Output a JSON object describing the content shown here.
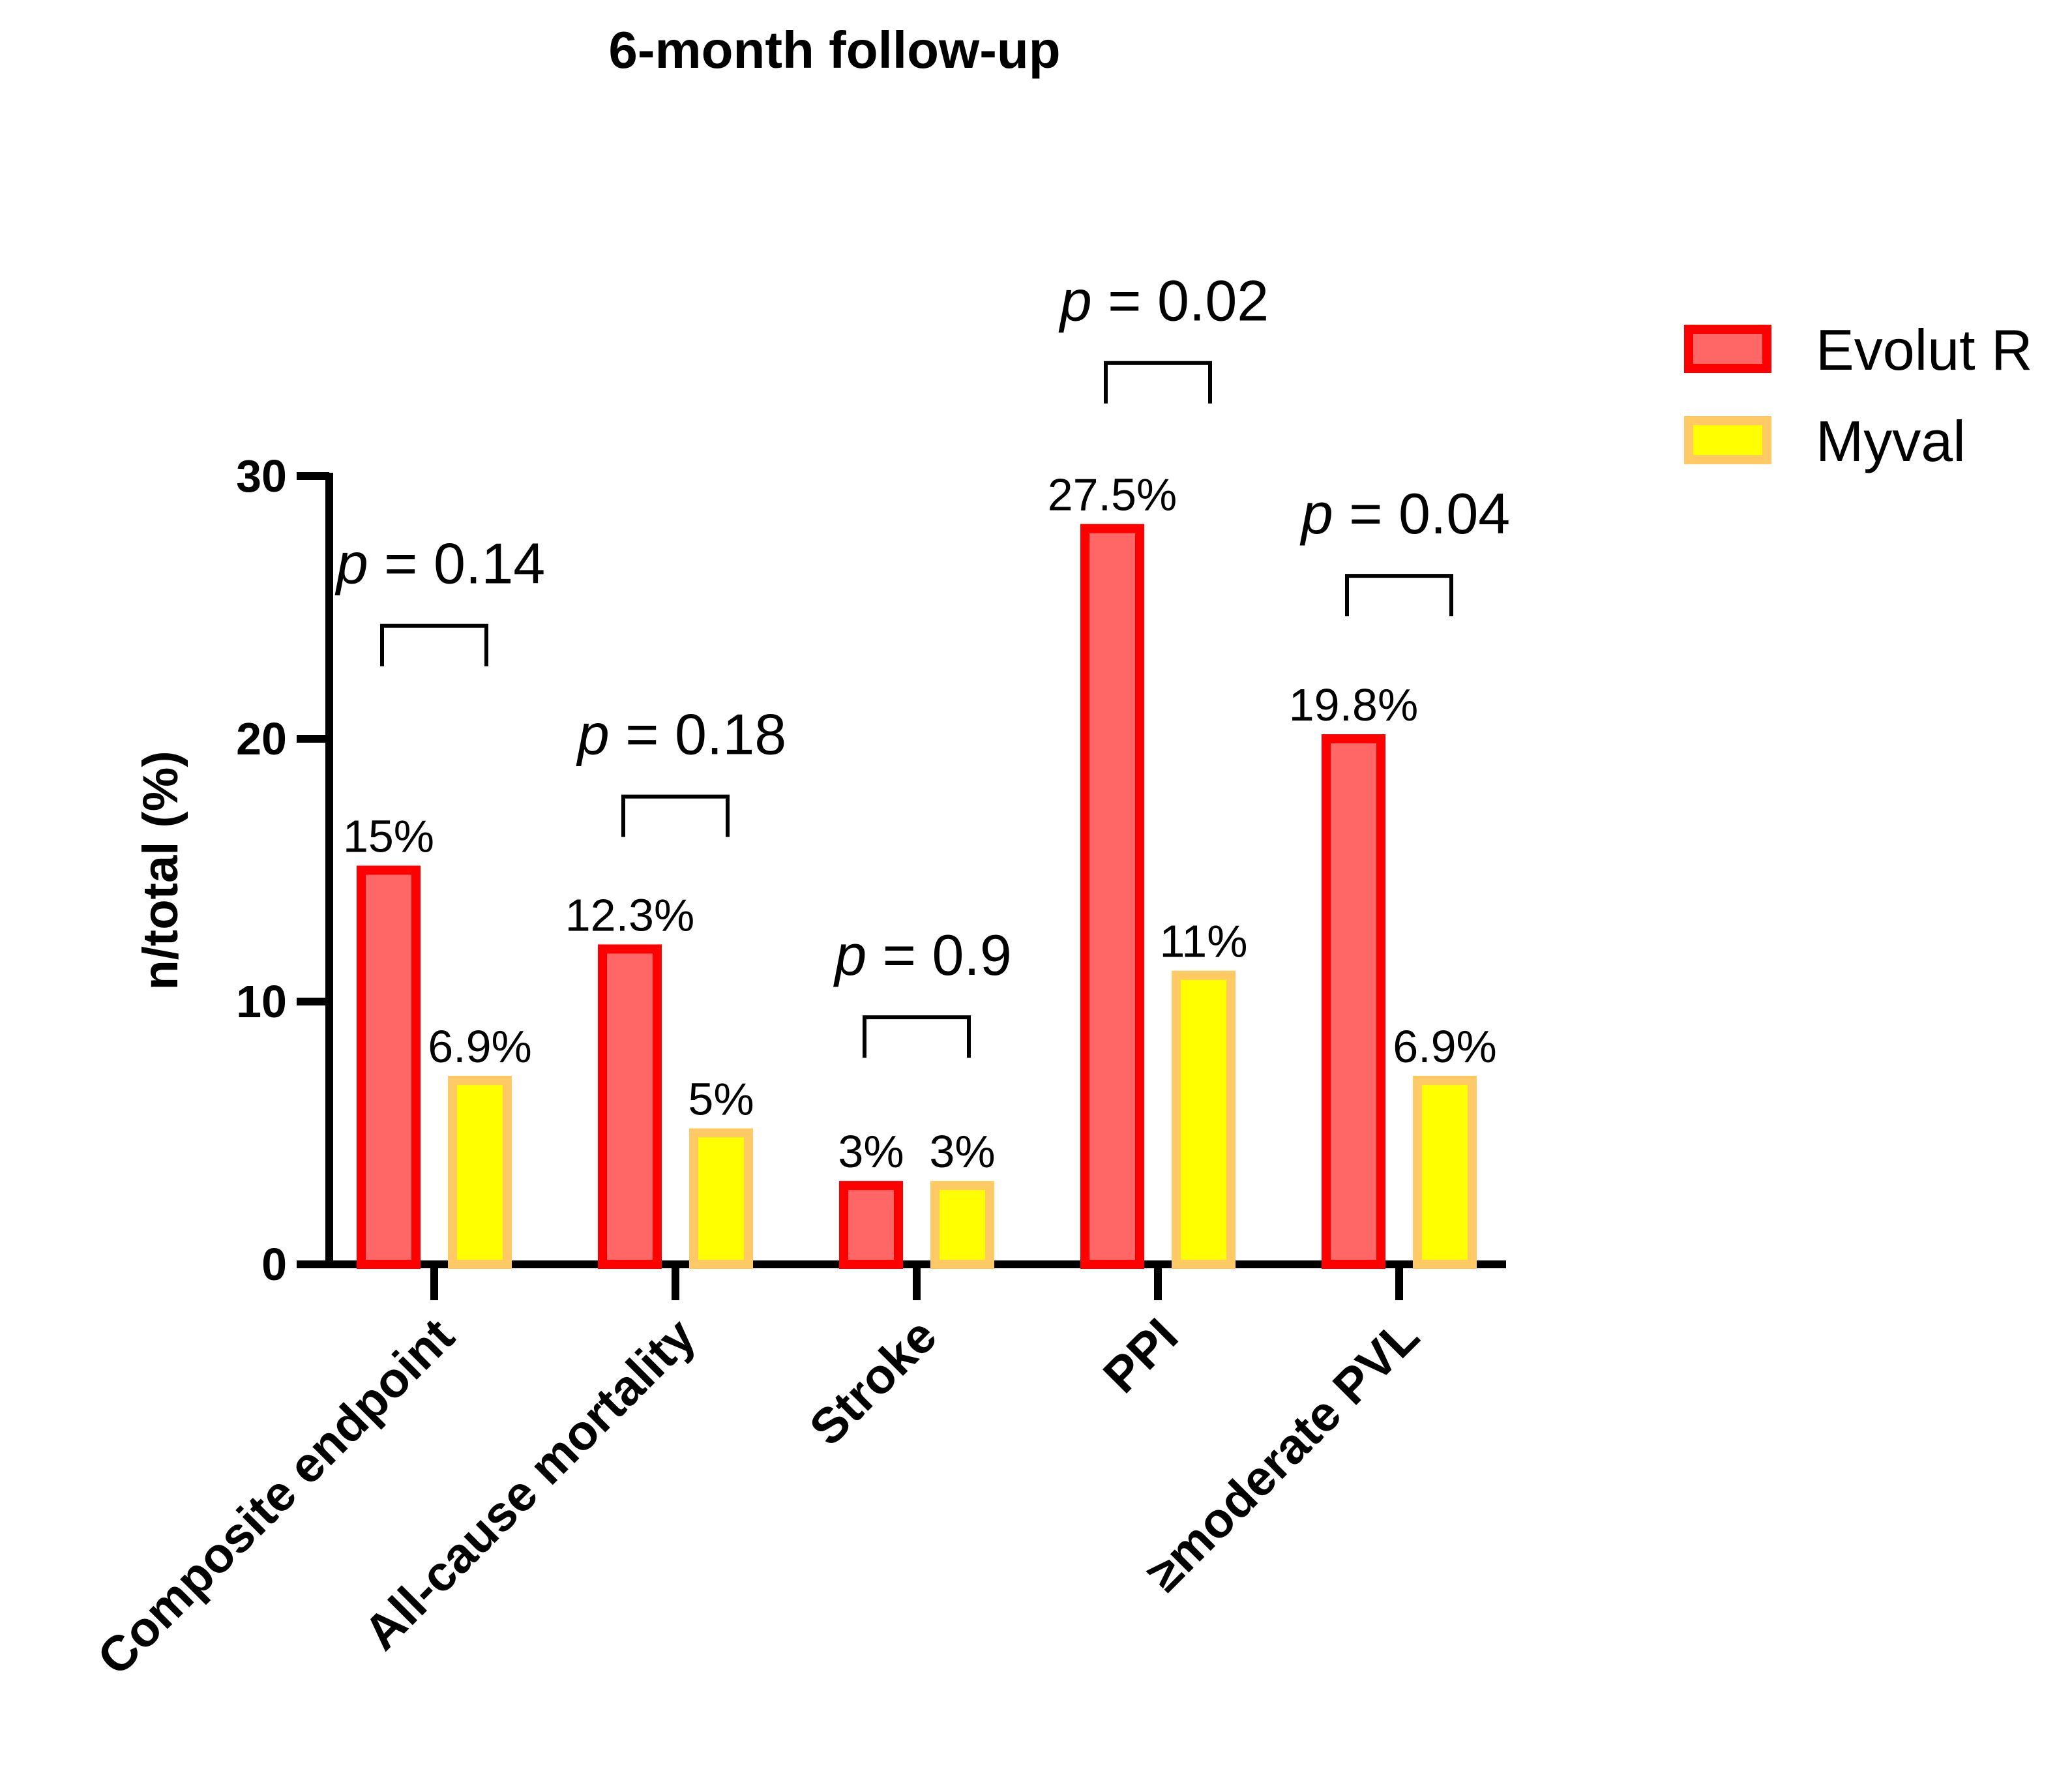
{
  "chart_data": {
    "type": "bar",
    "title": "6-month follow-up",
    "xlabel": "",
    "ylabel": "n/total (%)",
    "ylim": [
      0,
      30
    ],
    "yticks": [
      "0",
      "10",
      "20",
      "30"
    ],
    "categories": [
      "Composite endpoint",
      "All-cause mortality",
      "Stroke",
      "PPI",
      "≥moderate PVL"
    ],
    "series": [
      {
        "name": "Evolut R",
        "values": [
          15,
          12,
          3,
          28,
          20
        ],
        "labels": [
          "15%",
          "12.3%",
          "3%",
          "27.5%",
          "19.8%"
        ],
        "fill": "#ff6666",
        "stroke": "#ff0000"
      },
      {
        "name": "Myval",
        "values": [
          7,
          5,
          3,
          11,
          7
        ],
        "labels": [
          "6.9%",
          "5%",
          "3%",
          "11%",
          "6.9%"
        ],
        "fill": "#ffff00",
        "stroke": "#ffc966"
      }
    ],
    "comparisons": [
      {
        "category": 0,
        "p_symbol": "p",
        "p_value": "= 0.14",
        "bracket_y": 24.3
      },
      {
        "category": 1,
        "p_symbol": "p",
        "p_value": "= 0.18",
        "bracket_y": 17.8
      },
      {
        "category": 2,
        "p_symbol": "p",
        "p_value": "= 0.9",
        "bracket_y": 9.4
      },
      {
        "category": 3,
        "p_symbol": "p",
        "p_value": "= 0.02",
        "bracket_y": 34.3
      },
      {
        "category": 4,
        "p_symbol": "p",
        "p_value": "= 0.04",
        "bracket_y": 26.2
      }
    ],
    "legend_position": "top-right"
  }
}
